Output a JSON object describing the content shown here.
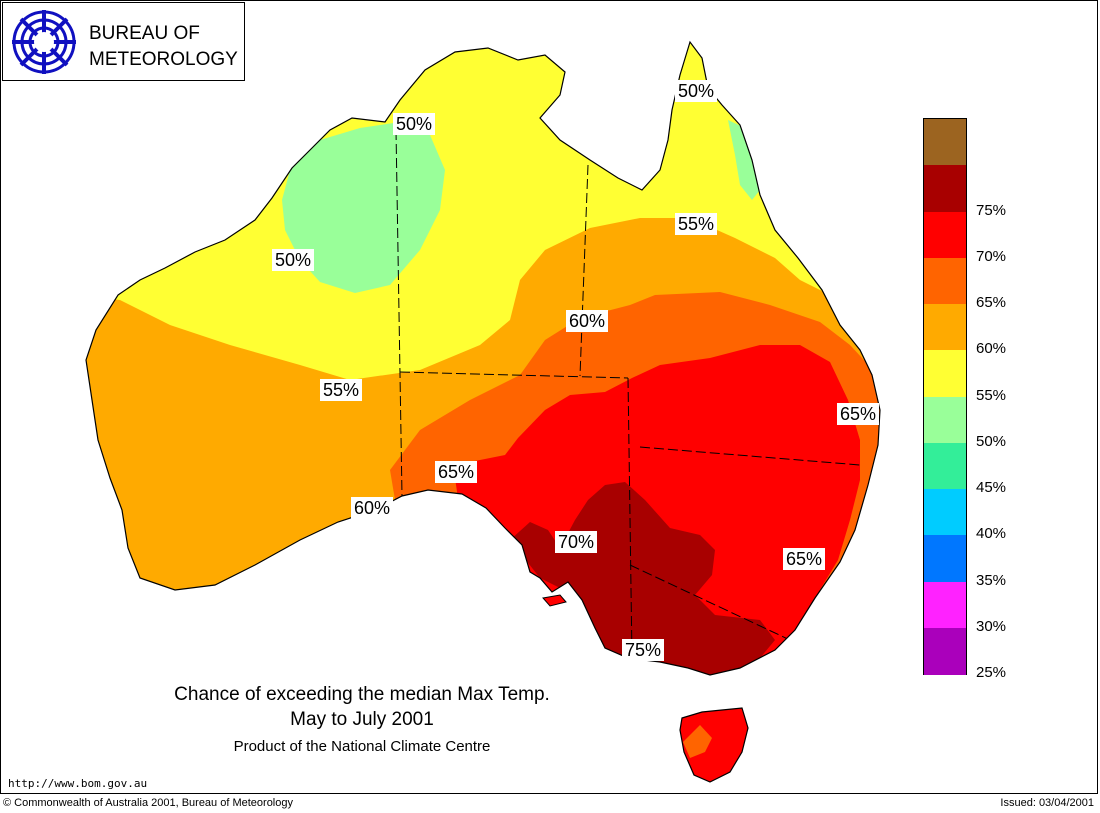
{
  "logo": {
    "line1": "BUREAU OF",
    "line2": "METEOROLOGY",
    "icon": "bom-swirl-icon"
  },
  "map": {
    "region": "Australia",
    "labels": [
      {
        "text": "50%"
      },
      {
        "text": "50%"
      },
      {
        "text": "50%"
      },
      {
        "text": "55%"
      },
      {
        "text": "55%"
      },
      {
        "text": "60%"
      },
      {
        "text": "60%"
      },
      {
        "text": "65%"
      },
      {
        "text": "65%"
      },
      {
        "text": "65%"
      },
      {
        "text": "70%"
      },
      {
        "text": "75%"
      }
    ]
  },
  "legend": {
    "bins": [
      {
        "color": "#9c6420",
        "label": ""
      },
      {
        "color": "#a80000",
        "label": "75%"
      },
      {
        "color": "#ff0000",
        "label": "70%"
      },
      {
        "color": "#ff6400",
        "label": "65%"
      },
      {
        "color": "#ffaa00",
        "label": "60%"
      },
      {
        "color": "#ffff33",
        "label": "55%"
      },
      {
        "color": "#99ff99",
        "label": "50%"
      },
      {
        "color": "#33ee99",
        "label": "45%"
      },
      {
        "color": "#00ccff",
        "label": "40%"
      },
      {
        "color": "#0077ff",
        "label": "35%"
      },
      {
        "color": "#ff22ff",
        "label": "30%"
      },
      {
        "color": "#aa00bb",
        "label": "25%"
      }
    ]
  },
  "title": {
    "line1": "Chance of exceeding the median Max Temp.",
    "line2": "May to July 2001",
    "product": "Product of the National Climate Centre"
  },
  "footer": {
    "url": "http://www.bom.gov.au",
    "copyright": "© Commonwealth of Australia 2001, Bureau of Meteorology",
    "issued": "Issued: 03/04/2001"
  }
}
